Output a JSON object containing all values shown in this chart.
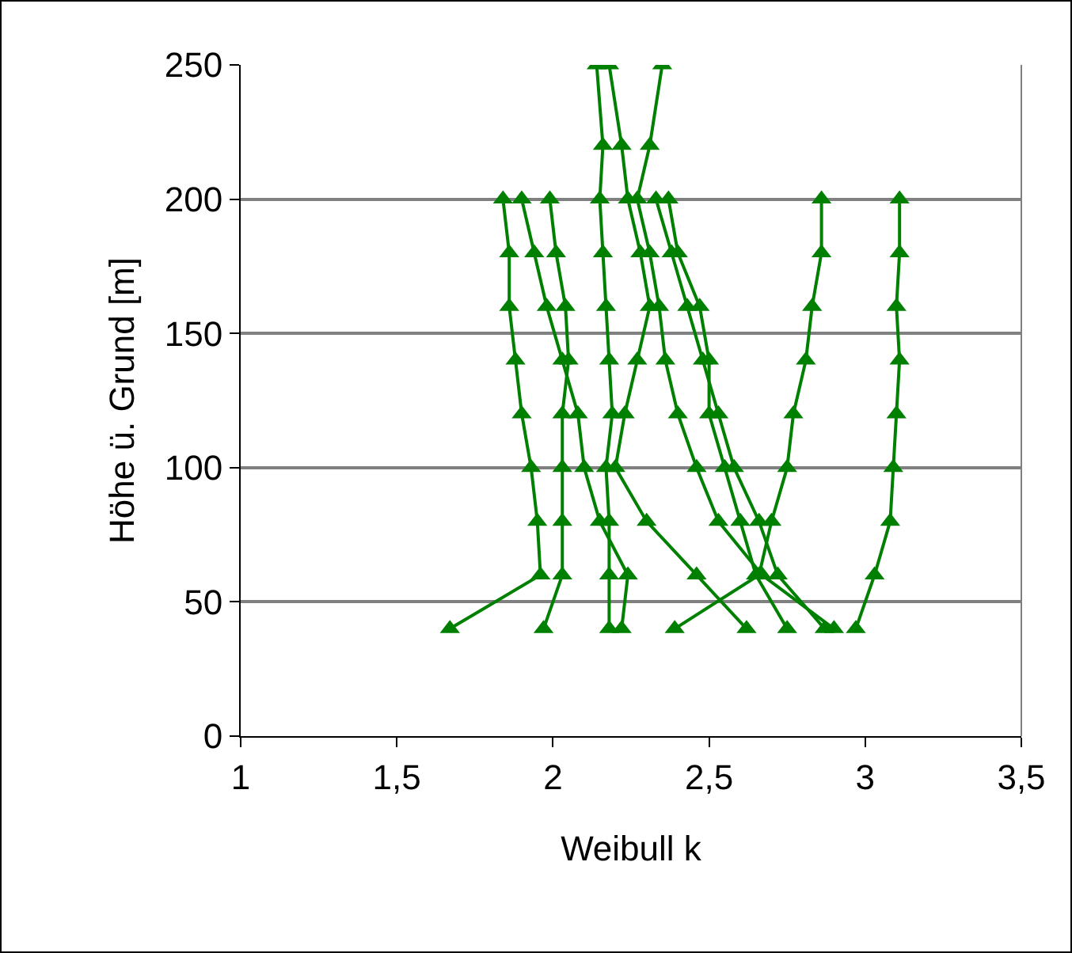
{
  "chart_data": {
    "type": "line",
    "xlabel": "Weibull k",
    "ylabel": "Höhe ü. Grund [m]",
    "xlim": [
      1,
      3.5
    ],
    "xticks": [
      1,
      {
        "value": 1.5,
        "label": "1,5"
      },
      2,
      {
        "value": 2.5,
        "label": "2,5"
      },
      3,
      {
        "value": 3.5,
        "label": "3,5"
      }
    ],
    "ylim": [
      0,
      250
    ],
    "yticks": [
      0,
      50,
      100,
      150,
      200,
      250
    ],
    "grid": "y",
    "marker": "triangle",
    "line_style": "solid",
    "series": [
      {
        "color": "#008000",
        "x": [
          1.67,
          1.96,
          1.95,
          1.93,
          1.9,
          1.88,
          1.86,
          1.86,
          1.84
        ],
        "values": [
          40,
          60,
          80,
          100,
          120,
          140,
          160,
          180,
          200
        ]
      },
      {
        "color": "#008000",
        "x": [
          1.97,
          2.03,
          2.03,
          2.03,
          2.03,
          2.05,
          2.04,
          2.01,
          1.99
        ],
        "values": [
          40,
          60,
          80,
          100,
          120,
          140,
          160,
          180,
          200
        ]
      },
      {
        "color": "#008000",
        "x": [
          2.22,
          2.24,
          2.15,
          2.1,
          2.08,
          2.03,
          1.98,
          1.94,
          1.9
        ],
        "values": [
          40,
          60,
          80,
          100,
          120,
          140,
          160,
          180,
          200
        ]
      },
      {
        "color": "#008000",
        "x": [
          2.18,
          2.18,
          2.18,
          2.17,
          2.19,
          2.18,
          2.17,
          2.16,
          2.15,
          2.16,
          2.14
        ],
        "values": [
          40,
          60,
          80,
          100,
          120,
          140,
          160,
          180,
          200,
          220,
          250
        ]
      },
      {
        "color": "#008000",
        "x": [
          2.62,
          2.46,
          2.3,
          2.2,
          2.23,
          2.27,
          2.31,
          2.28,
          2.24,
          2.22,
          2.18
        ],
        "values": [
          40,
          60,
          80,
          100,
          120,
          140,
          160,
          180,
          200,
          220,
          250
        ]
      },
      {
        "color": "#008000",
        "x": [
          2.9,
          2.67,
          2.53,
          2.46,
          2.4,
          2.36,
          2.34,
          2.31,
          2.27,
          2.31,
          2.35
        ],
        "values": [
          40,
          60,
          80,
          100,
          120,
          140,
          160,
          180,
          200,
          220,
          250
        ]
      },
      {
        "color": "#008000",
        "x": [
          2.87,
          2.72,
          2.66,
          2.58,
          2.53,
          2.48,
          2.43,
          2.38,
          2.33
        ],
        "values": [
          40,
          60,
          80,
          100,
          120,
          140,
          160,
          180,
          200
        ]
      },
      {
        "color": "#008000",
        "x": [
          2.75,
          2.65,
          2.6,
          2.55,
          2.5,
          2.5,
          2.47,
          2.4,
          2.37
        ],
        "values": [
          40,
          60,
          80,
          100,
          120,
          140,
          160,
          180,
          200
        ]
      },
      {
        "color": "#008000",
        "x": [
          2.39,
          2.66,
          2.7,
          2.75,
          2.77,
          2.81,
          2.83,
          2.86,
          2.86
        ],
        "values": [
          40,
          60,
          80,
          100,
          120,
          140,
          160,
          180,
          200
        ]
      },
      {
        "color": "#008000",
        "x": [
          2.97,
          3.03,
          3.08,
          3.09,
          3.1,
          3.11,
          3.1,
          3.11,
          3.11
        ],
        "values": [
          40,
          60,
          80,
          100,
          120,
          140,
          160,
          180,
          200
        ]
      }
    ]
  }
}
